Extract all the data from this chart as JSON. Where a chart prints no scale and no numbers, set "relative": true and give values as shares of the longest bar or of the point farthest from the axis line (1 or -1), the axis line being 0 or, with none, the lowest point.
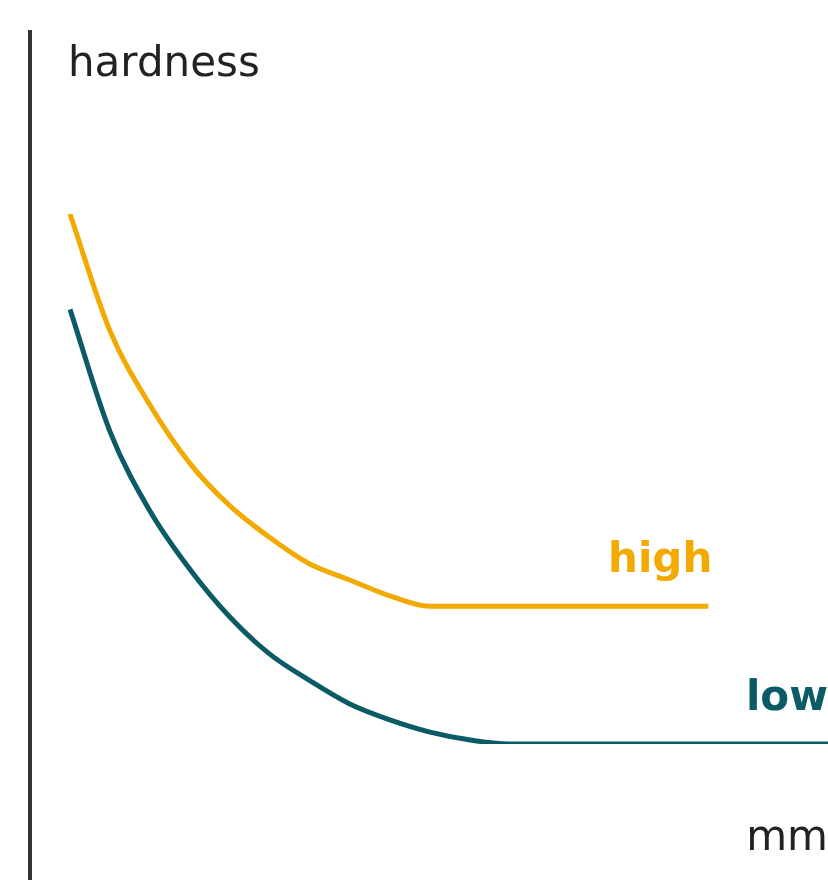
{
  "chart_data": {
    "type": "line",
    "relative": true,
    "ylabel": "hardness",
    "xlabel": "mm",
    "legend": false,
    "marker": "none",
    "line_style": "solid",
    "categories": [
      null,
      null,
      null,
      null,
      null,
      null,
      null,
      null,
      null,
      null,
      null,
      null,
      null,
      null,
      null,
      null,
      null,
      null,
      null,
      null
    ],
    "series": [
      {
        "name": "high",
        "color": "#f2a900",
        "values": [
          1.0,
          0.78,
          0.64,
          0.53,
          0.45,
          0.39,
          0.34,
          0.31,
          0.28,
          0.26,
          0.26,
          0.26,
          0.26,
          0.26,
          0.26,
          0.26,
          0.26,
          null,
          null,
          null
        ]
      },
      {
        "name": "low",
        "color": "#0b5b66",
        "values": [
          0.82,
          0.59,
          0.44,
          0.33,
          0.24,
          0.17,
          0.12,
          0.076,
          0.046,
          0.023,
          0.008,
          0,
          0,
          0,
          0,
          0,
          0,
          0,
          0,
          0
        ]
      }
    ]
  }
}
